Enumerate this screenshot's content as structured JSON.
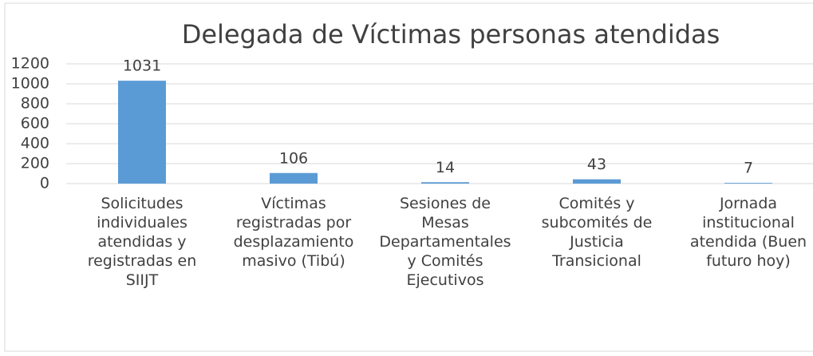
{
  "chart_data": {
    "type": "bar",
    "title": "Delegada de Víctimas personas atendidas",
    "categories": [
      "Solicitudes individuales atendidas y registradas en SIIJT",
      "Víctimas registradas por desplazamiento masivo (Tibú)",
      "Sesiones de Mesas Departamentales y Comités Ejecutivos",
      "Comités y subcomités de Justicia Transicional",
      "Jornada institucional atendida (Buen futuro hoy)"
    ],
    "values": [
      1031,
      106,
      14,
      43,
      7
    ],
    "color": "#5b9bd5",
    "ylim": [
      0,
      1200
    ],
    "yticks": [
      0,
      200,
      400,
      600,
      800,
      1000,
      1200
    ],
    "grid": true
  }
}
